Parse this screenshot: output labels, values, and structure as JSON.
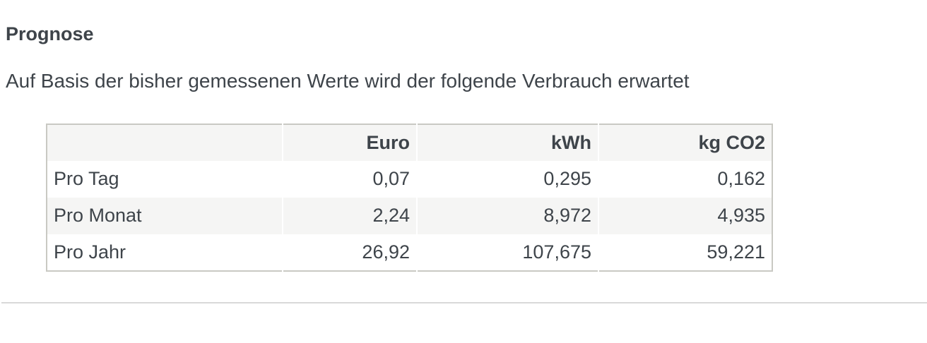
{
  "section": {
    "title": "Prognose",
    "description": "Auf Basis der bisher gemessenen Werte wird der folgende Verbrauch erwartet"
  },
  "table": {
    "headers": [
      "",
      "Euro",
      "kWh",
      "kg CO2"
    ],
    "rows": [
      {
        "label": "Pro Tag",
        "euro": "0,07",
        "kwh": "0,295",
        "kg_co2": "0,162"
      },
      {
        "label": "Pro Monat",
        "euro": "2,24",
        "kwh": "8,972",
        "kg_co2": "4,935"
      },
      {
        "label": "Pro Jahr",
        "euro": "26,92",
        "kwh": "107,675",
        "kg_co2": "59,221"
      }
    ]
  },
  "colors": {
    "text": "#3e444a",
    "table_border": "#c9c9c3",
    "row_stripe": "#f5f5f4",
    "divider": "#d9d9d9"
  }
}
